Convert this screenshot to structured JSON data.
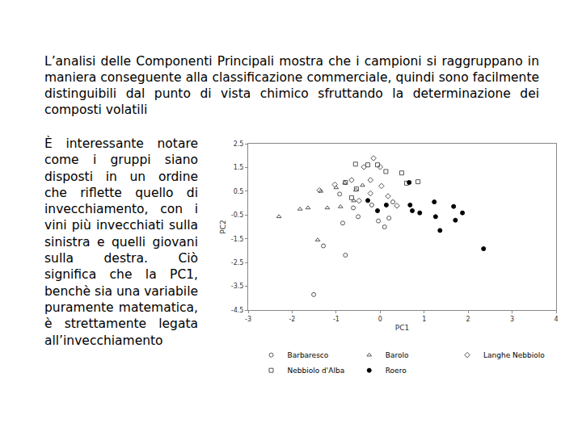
{
  "slide": {
    "heading": "L’analisi delle Componenti Principali mostra che i campioni si raggruppano in maniera conseguente alla classificazione commerciale, quindi sono facilmente distinguibili dal punto di vista chimico sfruttando la determinazione dei composti volatili",
    "body": "È interessante notare come i gruppi siano disposti in un ordine che riflette quello di invecchiamento, con i vini più invecchiati sulla sinistra e quelli giovani sulla destra. Ciò significa che la PC1, benchè sia una variabile puramente matematica, è strettamente legata all’invecchiamento"
  },
  "chart_data": {
    "type": "scatter",
    "x_label": "PC1",
    "y_label": "PC2",
    "xlim": [
      -3,
      4
    ],
    "xticks": [
      -3,
      -2,
      -1,
      0,
      1,
      2,
      3,
      4
    ],
    "ylim": [
      -4.5,
      2.5
    ],
    "yticks": [
      -4.5,
      -3.5,
      -2.5,
      -1.5,
      -0.5,
      0.5,
      1.5,
      2.5
    ],
    "grid": false,
    "legend": "bottom",
    "series": [
      {
        "name": "Barbaresco",
        "marker": "circle-open",
        "color": "#555555",
        "x": [
          -0.79,
          -1.51,
          -1.29,
          -0.85,
          -0.5,
          -0.19,
          -0.04,
          0.1,
          0.29,
          -0.92,
          -0.61,
          0.2
        ],
        "y": [
          -2.19,
          -3.85,
          -1.8,
          -0.84,
          -0.57,
          -0.08,
          -0.75,
          -1.0,
          0.05,
          0.38,
          -0.2,
          -0.63
        ]
      },
      {
        "name": "Barolo",
        "marker": "triangle-up-open",
        "color": "#555555",
        "x": [
          -2.3,
          -1.82,
          -1.64,
          -1.35,
          -1.42,
          -1.2,
          -1.0,
          -0.8,
          -0.55,
          -0.4,
          -0.9,
          -0.6
        ],
        "y": [
          -0.57,
          -0.25,
          -0.2,
          0.5,
          -1.55,
          -0.2,
          0.65,
          0.85,
          0.55,
          0.75,
          -0.15,
          0.1
        ]
      },
      {
        "name": "Langhe Nebbiolo",
        "marker": "diamond-open",
        "color": "#555555",
        "x": [
          -0.37,
          -0.22,
          -0.15,
          0.03,
          0.18,
          0.38,
          -0.48,
          0.0,
          -0.65,
          -0.22,
          -1.03,
          -1.38
        ],
        "y": [
          1.52,
          0.97,
          1.89,
          0.72,
          0.29,
          -0.11,
          0.1,
          1.52,
          0.97,
          0.41,
          0.78,
          0.54
        ]
      },
      {
        "name": "Nebbiolo d'Alba",
        "marker": "square-open",
        "color": "#555555",
        "x": [
          -0.56,
          -0.06,
          0.49,
          0.6,
          0.13,
          -0.79,
          -0.54,
          -0.28,
          0.86,
          -0.65
        ],
        "y": [
          1.64,
          1.61,
          1.27,
          0.84,
          1.33,
          0.87,
          0.6,
          1.61,
          0.9,
          0.23
        ]
      },
      {
        "name": "Roero",
        "marker": "circle",
        "color": "#000000",
        "x": [
          -0.28,
          0.14,
          0.73,
          0.9,
          0.66,
          1.23,
          1.26,
          1.36,
          1.71,
          1.67,
          1.87,
          2.35,
          0.68,
          -0.06
        ],
        "y": [
          0.11,
          -0.08,
          -0.32,
          -0.41,
          0.87,
          0.05,
          -0.57,
          -1.15,
          -0.72,
          -0.14,
          -0.41,
          -1.92,
          -0.08,
          -0.32
        ]
      }
    ]
  }
}
